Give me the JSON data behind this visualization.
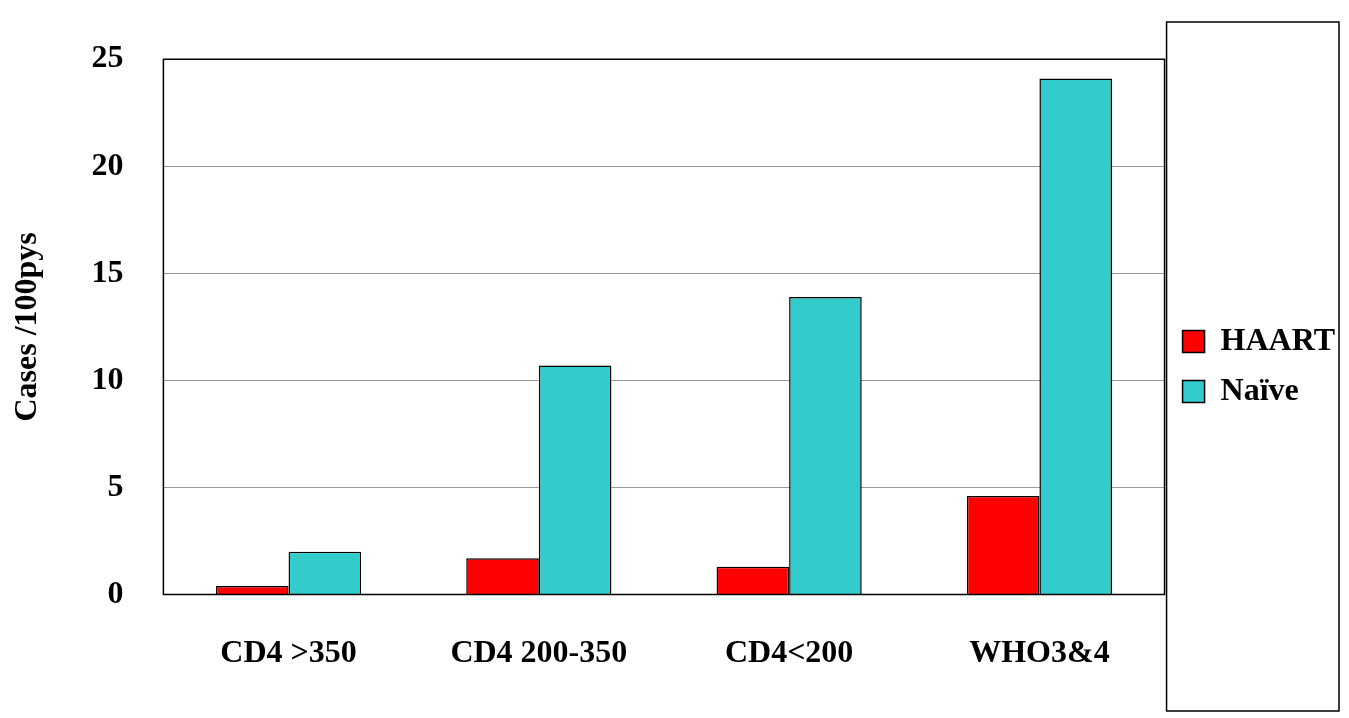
{
  "chart_data": {
    "type": "bar",
    "ylabel": "Cases /100pys",
    "categories": [
      "CD4 >350",
      "CD4 200-350",
      "CD4<200",
      "WHO3&4"
    ],
    "series": [
      {
        "name": "HAART",
        "color": "#ff0000",
        "values": [
          0.4,
          1.7,
          1.3,
          4.6
        ]
      },
      {
        "name": "Naïve",
        "color": "#33cccc",
        "values": [
          2.0,
          10.7,
          13.9,
          24.1
        ]
      }
    ],
    "ylim": [
      0,
      25
    ],
    "yticks": [
      0,
      5,
      10,
      15,
      20,
      25
    ],
    "grid": "y",
    "legend": "right"
  }
}
